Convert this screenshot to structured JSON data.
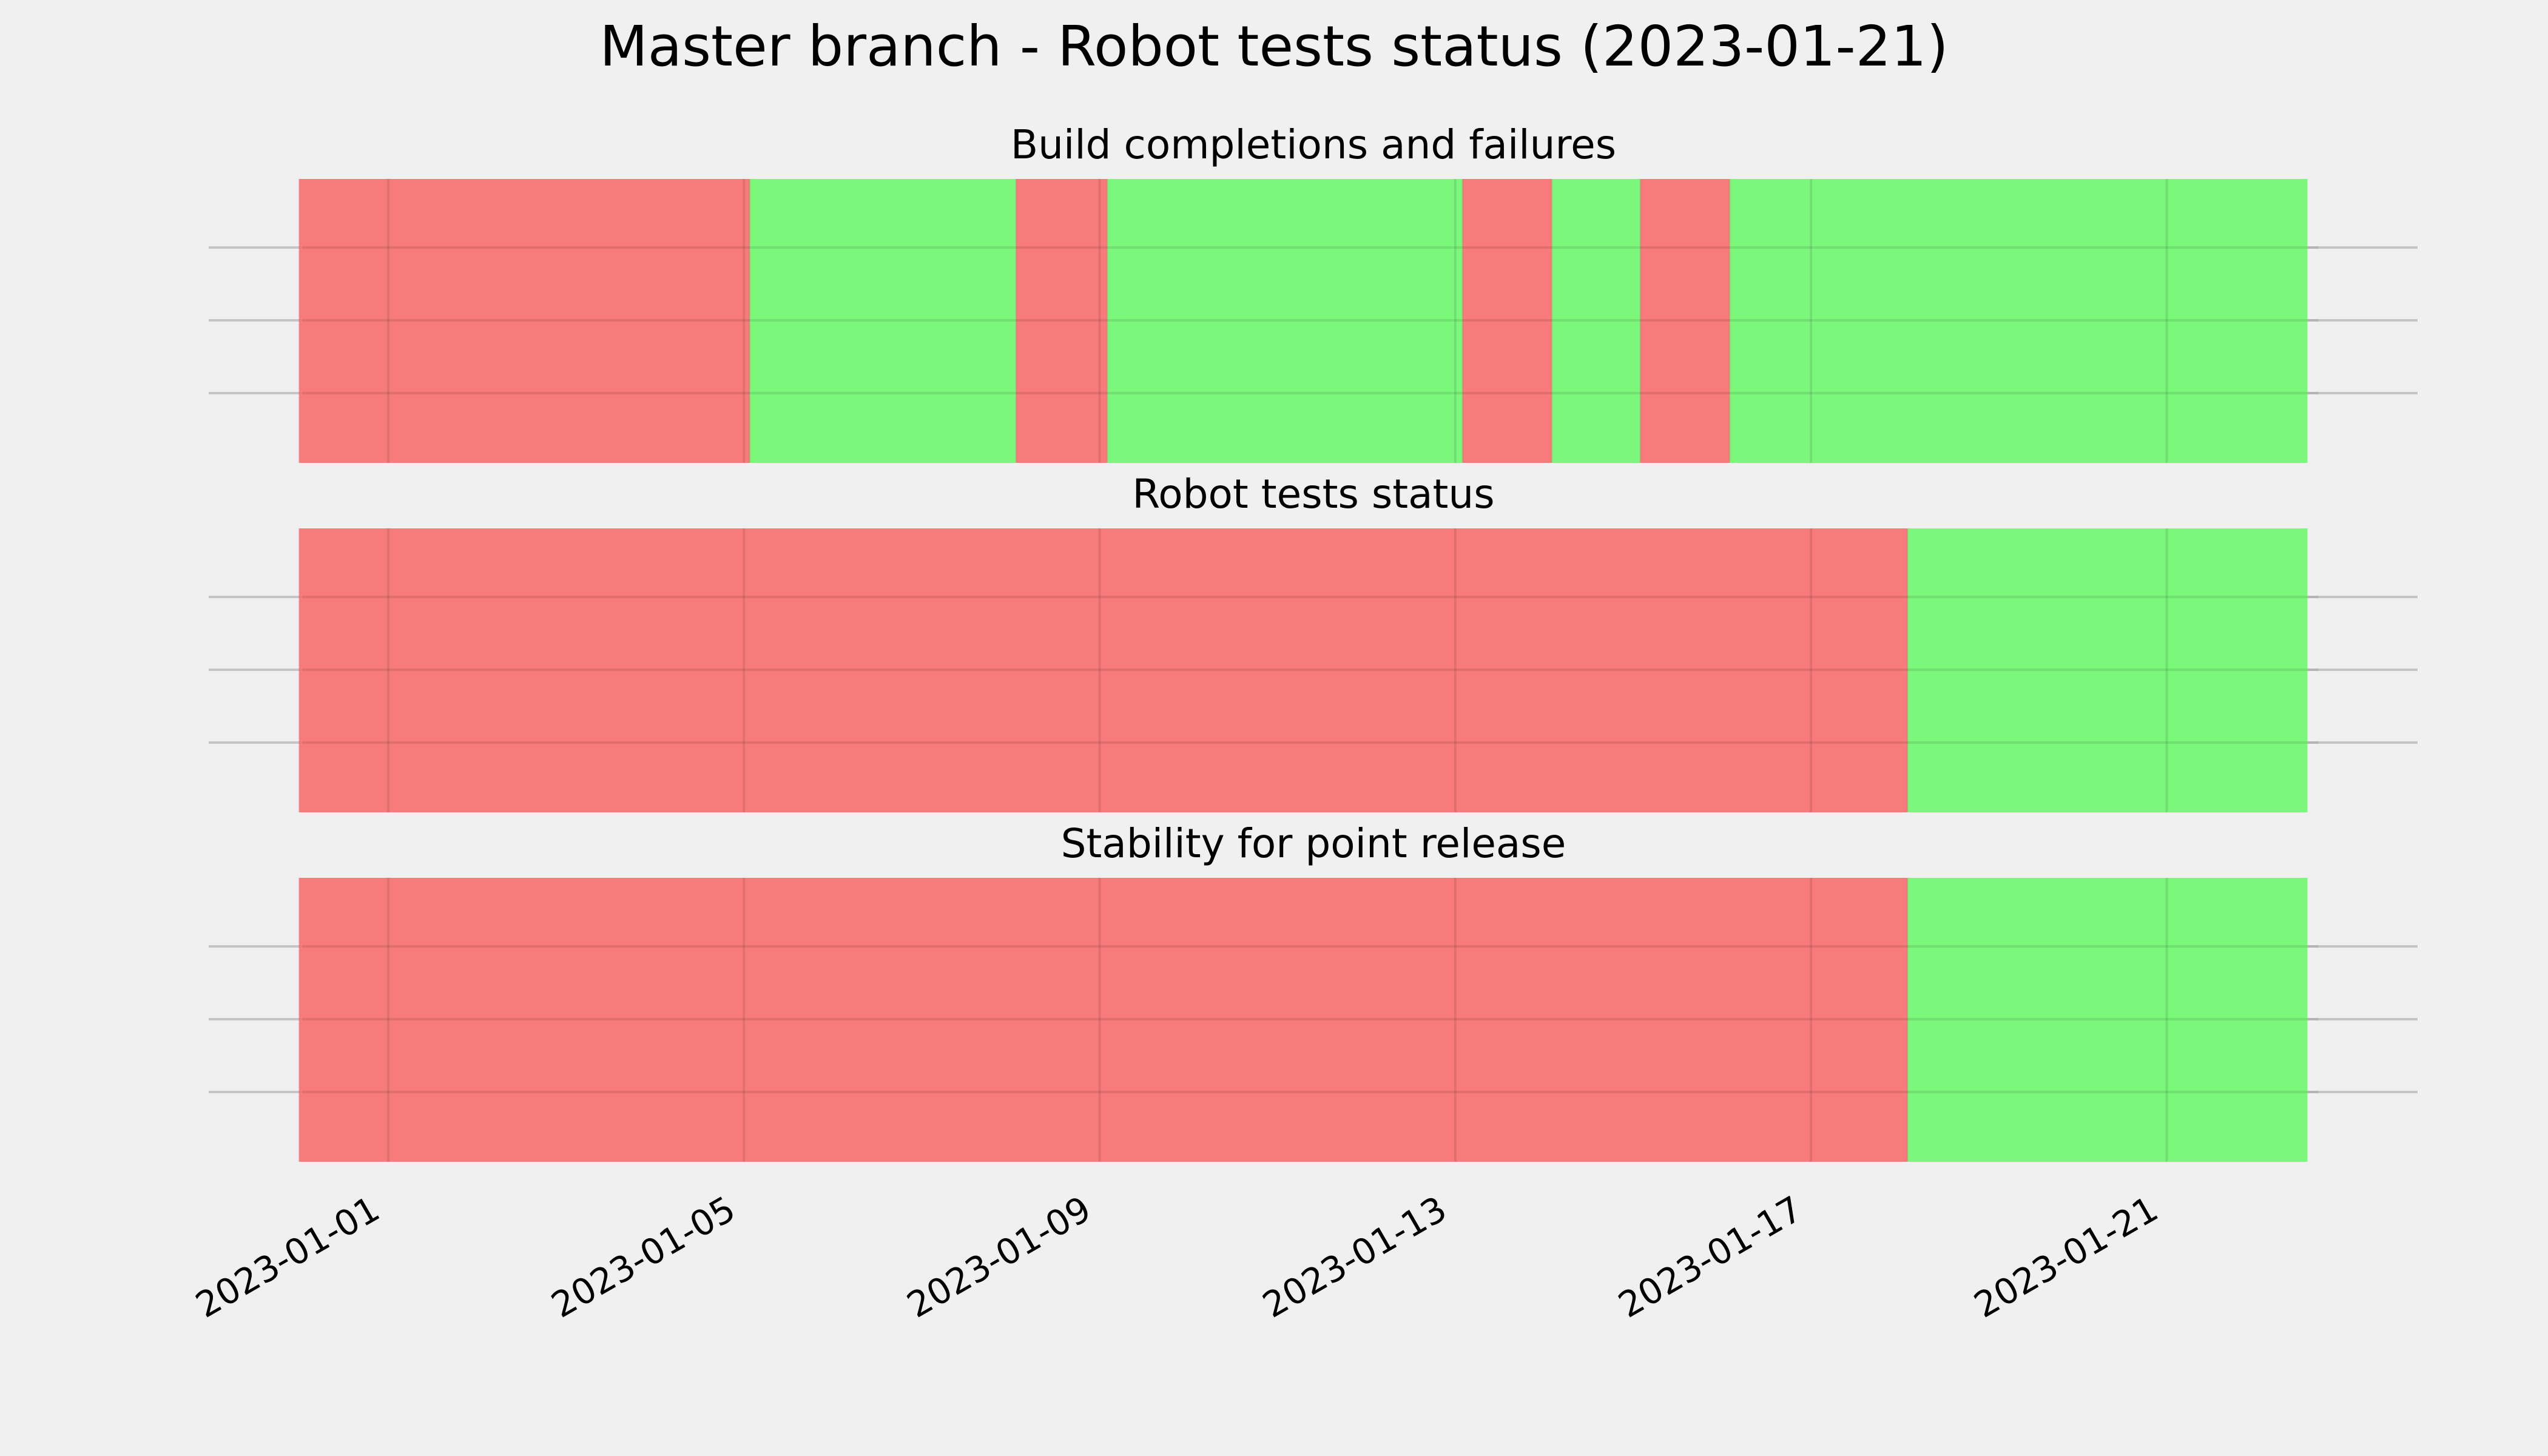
{
  "chart_data": {
    "type": "timeline",
    "title": "Master branch - Robot tests status (2023-01-21)",
    "x_range": [
      "2023-01-01T00:00",
      "2023-01-22T00:00"
    ],
    "x_ticks": [
      "2023-01-01",
      "2023-01-05",
      "2023-01-09",
      "2023-01-13",
      "2023-01-17",
      "2023-01-21"
    ],
    "status_colors": {
      "pass": "#77f777",
      "fail": "#f77777"
    },
    "panels": [
      {
        "title": "Build completions and failures",
        "segments": [
          {
            "start": "2022-12-31T00:00",
            "end": "2023-01-05T01:30",
            "status": "fail"
          },
          {
            "start": "2023-01-05T01:30",
            "end": "2023-01-08T01:30",
            "status": "pass"
          },
          {
            "start": "2023-01-08T01:30",
            "end": "2023-01-09T02:00",
            "status": "fail"
          },
          {
            "start": "2023-01-09T02:00",
            "end": "2023-01-13T02:00",
            "status": "pass"
          },
          {
            "start": "2023-01-13T02:00",
            "end": "2023-01-14T02:00",
            "status": "fail"
          },
          {
            "start": "2023-01-14T02:00",
            "end": "2023-01-15T02:00",
            "status": "pass"
          },
          {
            "start": "2023-01-15T02:00",
            "end": "2023-01-16T02:00",
            "status": "fail"
          },
          {
            "start": "2023-01-16T02:00",
            "end": "2023-01-22T14:00",
            "status": "pass"
          }
        ]
      },
      {
        "title": "Robot tests status",
        "segments": [
          {
            "start": "2022-12-31T00:00",
            "end": "2023-01-18T02:00",
            "status": "fail"
          },
          {
            "start": "2023-01-18T02:00",
            "end": "2023-01-22T14:00",
            "status": "pass"
          }
        ]
      },
      {
        "title": "Stability for point release",
        "segments": [
          {
            "start": "2022-12-31T00:00",
            "end": "2023-01-18T02:00",
            "status": "fail"
          },
          {
            "start": "2023-01-18T02:00",
            "end": "2023-01-22T14:00",
            "status": "pass"
          }
        ]
      }
    ],
    "grid": true,
    "legend": "none"
  }
}
